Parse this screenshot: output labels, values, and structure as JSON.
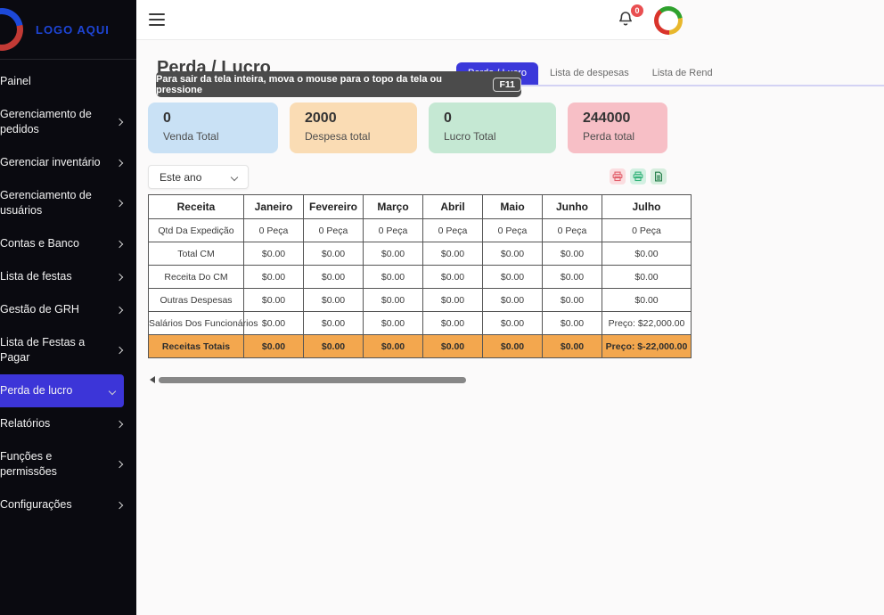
{
  "sidebar": {
    "logo_text": "LOGO AQUI",
    "items": [
      {
        "label": "Painel",
        "chevron": ""
      },
      {
        "label": "Gerenciamento de pedidos",
        "chevron": "right"
      },
      {
        "label": "Gerenciar inventário",
        "chevron": "right"
      },
      {
        "label": "Gerenciamento de usuários",
        "chevron": "right"
      },
      {
        "label": "Contas e Banco",
        "chevron": "right"
      },
      {
        "label": "Lista de festas",
        "chevron": "right"
      },
      {
        "label": "Gestão de GRH",
        "chevron": "right"
      },
      {
        "label": "Lista de Festas a Pagar",
        "chevron": "right"
      },
      {
        "label": "Perda de lucro",
        "chevron": "down",
        "active": true
      },
      {
        "label": "Relatórios",
        "chevron": "right"
      },
      {
        "label": "Funções e permissões",
        "chevron": "right"
      },
      {
        "label": "Configurações",
        "chevron": "right"
      }
    ],
    "active_color": "#3c35d8"
  },
  "topbar": {
    "notification_count": "0"
  },
  "page": {
    "title": "Perda / Lucro",
    "tooltip": {
      "text": "Para sair da tela inteira, mova o mouse para o topo da tela ou pressione",
      "key": "F11"
    },
    "tabs": [
      {
        "label": "Perda / Lucro",
        "active": true
      },
      {
        "label": "Lista de despesas",
        "active": false
      },
      {
        "label": "Lista de Rend",
        "active": false
      }
    ],
    "tab_active_color": "#3b38da"
  },
  "cards": [
    {
      "value": "0",
      "label": "Venda Total",
      "bg": "#c9e1f5"
    },
    {
      "value": "2000",
      "label": "Despesa total",
      "bg": "#fadcb4"
    },
    {
      "value": "0",
      "label": "Lucro Total",
      "bg": "#c5e8d3"
    },
    {
      "value": "244000",
      "label": "Perda total",
      "bg": "#f7bfc6"
    }
  ],
  "filters": {
    "period": "Este ano"
  },
  "export_buttons": [
    {
      "name": "export-pdf-button",
      "icon": "pdf-printer-icon",
      "bg": "#fbdde0",
      "fg": "#e2606c"
    },
    {
      "name": "export-print-button",
      "icon": "printer-icon",
      "bg": "#d3f0e2",
      "fg": "#34b37a"
    },
    {
      "name": "export-excel-button",
      "icon": "excel-file-icon",
      "bg": "#d6eede",
      "fg": "#1e7a45"
    }
  ],
  "table": {
    "columns": [
      "Receita",
      "Janeiro",
      "Fevereiro",
      "Março",
      "Abril",
      "Maio",
      "Junho",
      "Julho"
    ],
    "rows": [
      {
        "label": "Qtd Da Expedição",
        "values": [
          "0 Peça",
          "0 Peça",
          "0 Peça",
          "0 Peça",
          "0 Peça",
          "0 Peça",
          "0 Peça"
        ],
        "highlight": false
      },
      {
        "label": "Total CM",
        "values": [
          "$0.00",
          "$0.00",
          "$0.00",
          "$0.00",
          "$0.00",
          "$0.00",
          "$0.00"
        ],
        "highlight": false
      },
      {
        "label": "Receita Do CM",
        "values": [
          "$0.00",
          "$0.00",
          "$0.00",
          "$0.00",
          "$0.00",
          "$0.00",
          "$0.00"
        ],
        "highlight": false
      },
      {
        "label": "Outras Despesas",
        "values": [
          "$0.00",
          "$0.00",
          "$0.00",
          "$0.00",
          "$0.00",
          "$0.00",
          "$0.00"
        ],
        "highlight": false
      },
      {
        "label": "Salários Dos Funcionários",
        "values": [
          "$0.00",
          "$0.00",
          "$0.00",
          "$0.00",
          "$0.00",
          "$0.00",
          "Preço: $22,000.00"
        ],
        "highlight": false
      },
      {
        "label": "Receitas Totais",
        "values": [
          "$0.00",
          "$0.00",
          "$0.00",
          "$0.00",
          "$0.00",
          "$0.00",
          "Preço: $-22,000.00"
        ],
        "highlight": true
      }
    ],
    "highlight_color": "#f3a74e"
  }
}
